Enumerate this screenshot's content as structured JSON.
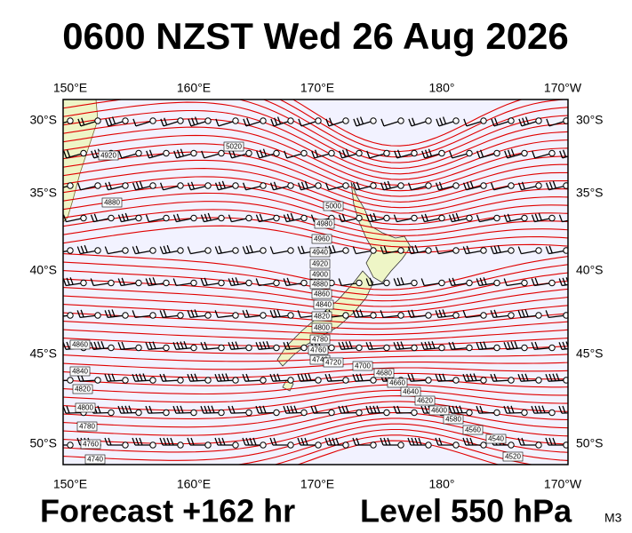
{
  "header": {
    "title": "0600 NZST Wed 26 Aug 2026"
  },
  "map": {
    "lon_labels": [
      "150°E",
      "160°E",
      "170°E",
      "180°",
      "170°W"
    ],
    "lat_labels": [
      "30°S",
      "35°S",
      "40°S",
      "45°S",
      "50°S"
    ],
    "contour_labels": [
      "5000",
      "4980",
      "4960",
      "4940",
      "4920",
      "4900",
      "4880",
      "4860",
      "4840",
      "4820",
      "4800",
      "4780",
      "4760",
      "4740",
      "4720",
      "4700",
      "4680",
      "4660",
      "4640",
      "4620",
      "4600",
      "4580",
      "4560",
      "4540",
      "4520",
      "4860",
      "4840",
      "4820",
      "4800",
      "4780",
      "4760",
      "4740",
      "5020",
      "4920",
      "4880"
    ]
  },
  "footer": {
    "forecast": "Forecast +162 hr",
    "level": "Level 550 hPa",
    "model": "M3"
  }
}
